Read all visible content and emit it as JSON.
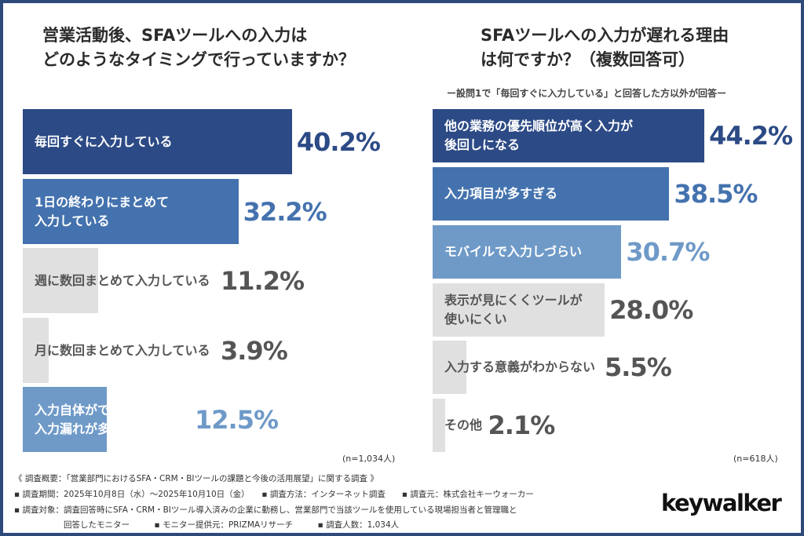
{
  "colors": {
    "navy": "#2c4a85",
    "blue": "#4472ae",
    "light": "#6f9ac8",
    "gray": "#e0e0e0",
    "grayText": "#555555",
    "border": "#2d4a7a"
  },
  "chart_data": [
    {
      "type": "bar",
      "orientation": "horizontal",
      "title": "営業活動後、SFAツールへの入力は\nどのようなタイミングで行っていますか？",
      "categories": [
        "毎回すぐに入力している",
        "1日の終わりにまとめて\n入力している",
        "週に数回まとめて入力している",
        "月に数回まとめて入力している",
        "入力自体ができていない・\n入力漏れが多い"
      ],
      "values": [
        40.2,
        32.2,
        11.2,
        3.9,
        12.5
      ],
      "value_labels": [
        "40.2%",
        "32.2%",
        "11.2%",
        "3.9%",
        "12.5%"
      ],
      "bar_colors": [
        "#2c4a85",
        "#4472ae",
        "#e0e0e0",
        "#e0e0e0",
        "#6f9ac8"
      ],
      "note": "(n=1,034人)"
    },
    {
      "type": "bar",
      "orientation": "horizontal",
      "title": "SFAツールへの入力が遅れる理由\nは何ですか？（複数回答可）",
      "subtitle": "ー設問1で「毎回すぐに入力している」と回答した方以外が回答ー",
      "categories": [
        "他の業務の優先順位が高く入力が\n後回しになる",
        "入力項目が多すぎる",
        "モバイルで入力しづらい",
        "表示が見にくくツールが\n使いにくい",
        "入力する意義がわからない",
        "その他"
      ],
      "values": [
        44.2,
        38.5,
        30.7,
        28.0,
        5.5,
        2.1
      ],
      "value_labels": [
        "44.2%",
        "38.5%",
        "30.7%",
        "28.0%",
        "5.5%",
        "2.1%"
      ],
      "bar_colors": [
        "#2c4a85",
        "#4472ae",
        "#6f9ac8",
        "#e0e0e0",
        "#e0e0e0",
        "#e0e0e0"
      ],
      "note": "(n=618人)"
    }
  ],
  "footer": {
    "line1": "《 調査概要：「営業部門におけるSFA・CRM・BIツールの課題と今後の活用展望」に関する調査 》",
    "line2": "▪ 調査期間：2025年10月8日（水）〜2025年10月10日（金）　　▪ 調査方法：インターネット調査　　▪ 調査元：株式会社キーウォーカー",
    "line3": "▪ 調査対象：調査回答時にSFA・CRM・BIツール導入済みの企業に勤務し、営業部門で当該ツールを使用している現場担当者と管理職と",
    "line4": "　　　　　　回答したモニター　　　▪ モニター提供元：PRIZMAリサーチ　　　▪ 調査人数：1,034人"
  },
  "logo": "keywalker"
}
